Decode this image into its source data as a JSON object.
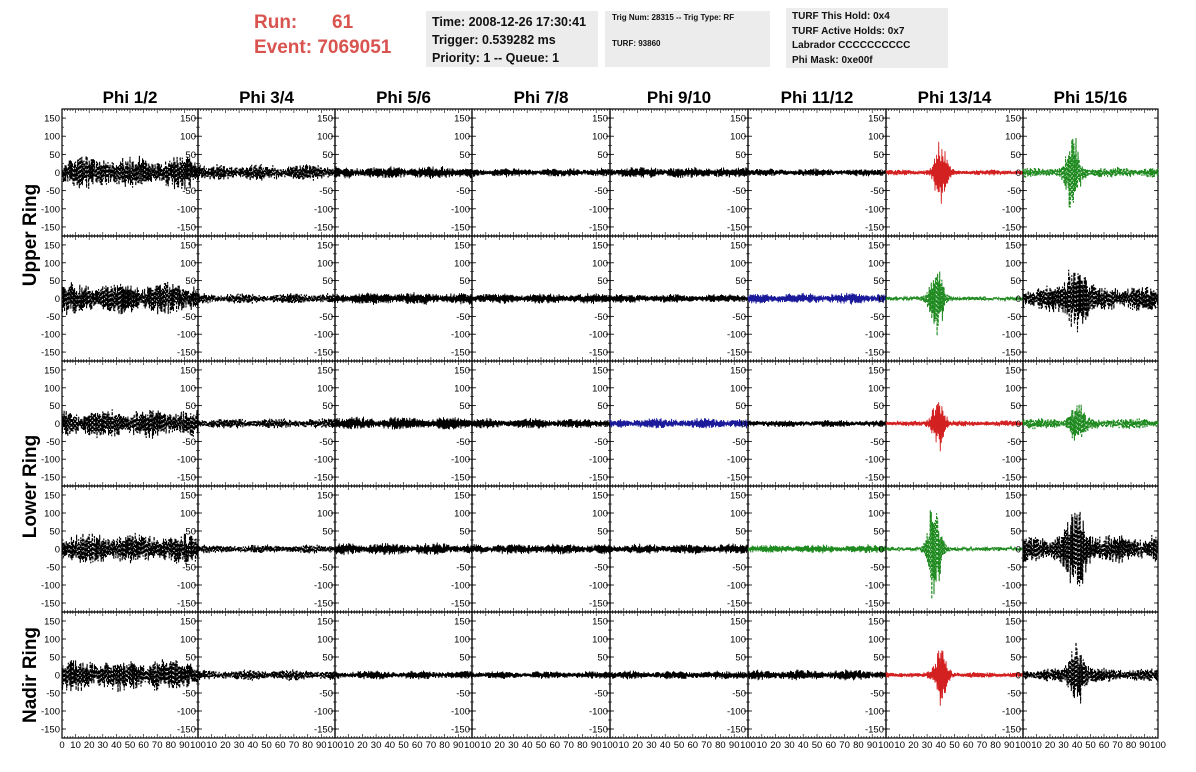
{
  "header": {
    "run_label": "Run:",
    "run_value": "61",
    "event_label": "Event:",
    "event_value": "7069051"
  },
  "info_box_time": {
    "time": "Time: 2008-12-26 17:30:41",
    "trigger": "Trigger: 0.539282 ms",
    "priority": "Priority: 1 -- Queue: 1"
  },
  "info_box_trig": {
    "trig": "Trig Num: 28315 -- Trig Type: RF",
    "turf": "TURF: 93860"
  },
  "info_box_turf": {
    "hold": "TURF This Hold: 0x4",
    "active": "TURF Active Holds: 0x7",
    "labrador": "Labrador CCCCCCCCCC",
    "phimask": "Phi Mask: 0xe00f"
  },
  "chart_data": {
    "type": "line",
    "columns": [
      "Phi 1/2",
      "Phi 3/4",
      "Phi 5/6",
      "Phi 7/8",
      "Phi 9/10",
      "Phi 11/12",
      "Phi 13/14",
      "Phi 15/16"
    ],
    "ring_labels": [
      "Upper Ring",
      "Lower Ring",
      "Nadir Ring"
    ],
    "row_count": 5,
    "ring_row_pairs": [
      [
        0,
        1
      ],
      [
        2,
        3
      ],
      [
        4,
        4
      ]
    ],
    "ylim": [
      -175,
      175
    ],
    "yticks": [
      -150,
      -100,
      -50,
      0,
      50,
      100,
      150
    ],
    "xlim": [
      0,
      100
    ],
    "xticks": [
      0,
      10,
      20,
      30,
      40,
      50,
      60,
      70,
      80,
      90,
      100
    ],
    "x_tick_labels": [
      "0",
      "10",
      "20",
      "30",
      "40",
      "50",
      "60",
      "70",
      "80",
      "90",
      "100"
    ],
    "grid": false,
    "colors": {
      "black": "#000000",
      "red": "#d32020",
      "green": "#1f8a1f",
      "blue": "#1a1a9a"
    },
    "panels": [
      [
        {
          "color": "black",
          "dashed": true,
          "amp": 45,
          "burst": null
        },
        {
          "color": "black",
          "dashed": true,
          "amp": 22,
          "burst": null
        },
        {
          "color": "black",
          "dashed": false,
          "amp": 17,
          "burst": null
        },
        {
          "color": "black",
          "dashed": false,
          "amp": 12,
          "burst": null
        },
        {
          "color": "black",
          "dashed": false,
          "amp": 15,
          "burst": null
        },
        {
          "color": "black",
          "dashed": false,
          "amp": 10,
          "burst": null
        },
        {
          "color": "red",
          "dashed": false,
          "amp": 8,
          "burst": {
            "center": 40,
            "width": 5,
            "amp": 95
          }
        },
        {
          "color": "green",
          "dashed": true,
          "amp": 15,
          "burst": {
            "center": 37,
            "width": 5,
            "amp": 130
          }
        }
      ],
      [
        {
          "color": "black",
          "dashed": true,
          "amp": 45,
          "burst": null
        },
        {
          "color": "black",
          "dashed": true,
          "amp": 15,
          "burst": null
        },
        {
          "color": "black",
          "dashed": false,
          "amp": 17,
          "burst": null
        },
        {
          "color": "black",
          "dashed": false,
          "amp": 14,
          "burst": null
        },
        {
          "color": "black",
          "dashed": false,
          "amp": 12,
          "burst": null
        },
        {
          "color": "blue",
          "dashed": false,
          "amp": 15,
          "burst": null
        },
        {
          "color": "green",
          "dashed": true,
          "amp": 6,
          "burst": {
            "center": 37,
            "width": 5,
            "amp": 130
          }
        },
        {
          "color": "black",
          "dashed": true,
          "amp": 35,
          "burst": {
            "center": 40,
            "width": 8,
            "amp": 90
          }
        }
      ],
      [
        {
          "color": "black",
          "dashed": true,
          "amp": 40,
          "burst": null
        },
        {
          "color": "black",
          "dashed": true,
          "amp": 14,
          "burst": null
        },
        {
          "color": "black",
          "dashed": false,
          "amp": 18,
          "burst": null
        },
        {
          "color": "black",
          "dashed": false,
          "amp": 14,
          "burst": null
        },
        {
          "color": "blue",
          "dashed": false,
          "amp": 14,
          "burst": null
        },
        {
          "color": "black",
          "dashed": false,
          "amp": 10,
          "burst": null
        },
        {
          "color": "red",
          "dashed": false,
          "amp": 8,
          "burst": {
            "center": 38,
            "width": 5,
            "amp": 85
          }
        },
        {
          "color": "green",
          "dashed": true,
          "amp": 15,
          "burst": {
            "center": 40,
            "width": 5,
            "amp": 75
          }
        }
      ],
      [
        {
          "color": "black",
          "dashed": true,
          "amp": 42,
          "burst": null
        },
        {
          "color": "black",
          "dashed": true,
          "amp": 12,
          "burst": null
        },
        {
          "color": "black",
          "dashed": false,
          "amp": 17,
          "burst": null
        },
        {
          "color": "black",
          "dashed": false,
          "amp": 15,
          "burst": null
        },
        {
          "color": "black",
          "dashed": false,
          "amp": 14,
          "burst": null
        },
        {
          "color": "green",
          "dashed": false,
          "amp": 12,
          "burst": null
        },
        {
          "color": "green",
          "dashed": true,
          "amp": 6,
          "burst": {
            "center": 35,
            "width": 5,
            "amp": 165
          }
        },
        {
          "color": "black",
          "dashed": true,
          "amp": 40,
          "burst": {
            "center": 40,
            "width": 8,
            "amp": 100
          }
        }
      ],
      [
        {
          "color": "black",
          "dashed": true,
          "amp": 45,
          "burst": null
        },
        {
          "color": "black",
          "dashed": true,
          "amp": 15,
          "burst": null
        },
        {
          "color": "black",
          "dashed": false,
          "amp": 12,
          "burst": null
        },
        {
          "color": "black",
          "dashed": false,
          "amp": 10,
          "burst": null
        },
        {
          "color": "black",
          "dashed": false,
          "amp": 12,
          "burst": null
        },
        {
          "color": "black",
          "dashed": false,
          "amp": 14,
          "burst": null
        },
        {
          "color": "red",
          "dashed": false,
          "amp": 8,
          "burst": {
            "center": 40,
            "width": 5,
            "amp": 90
          }
        },
        {
          "color": "black",
          "dashed": true,
          "amp": 18,
          "burst": {
            "center": 40,
            "width": 6,
            "amp": 110
          }
        }
      ]
    ]
  }
}
